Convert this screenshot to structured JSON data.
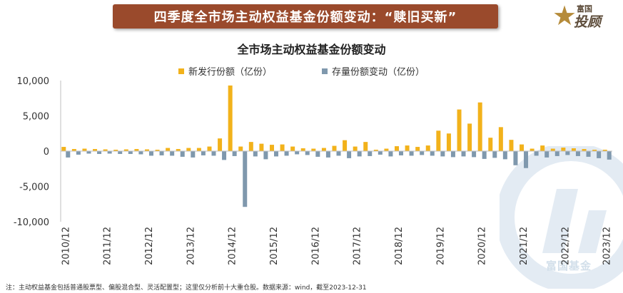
{
  "header": {
    "banner_title": "四季度全市场主动权益基金份额变动：“赎旧买新”",
    "logo_top": "富国",
    "logo_main": "投顾",
    "watermark_text": "富国基金"
  },
  "colors": {
    "banner": "#9a4a2c",
    "new_issue": "#f2b21b",
    "stock_change": "#7f98ad"
  },
  "footnote": "注：主动权益基金包括普通股票型、偏股混合型、灵活配置型；这里仅分析前十大重仓股。数据来源：wind，截至2023-12-31",
  "chart_data": {
    "type": "bar",
    "title": "全市场主动权益基金份额变动",
    "xlabel": "",
    "ylabel": "",
    "ylim": [
      -10000,
      10000
    ],
    "yticks": [
      "-10,000",
      "-5,000",
      "0",
      "5,000",
      "10,000"
    ],
    "legend_position": "top",
    "grid": false,
    "x_tick_labels": [
      "2010/12",
      "2011/12",
      "2012/12",
      "2013/12",
      "2014/12",
      "2015/12",
      "2016/12",
      "2017/12",
      "2018/12",
      "2019/12",
      "2020/12",
      "2021/12",
      "2022/12",
      "2023/12"
    ],
    "categories": [
      "2010Q4",
      "2011Q1",
      "2011Q2",
      "2011Q3",
      "2011Q4",
      "2012Q1",
      "2012Q2",
      "2012Q3",
      "2012Q4",
      "2013Q1",
      "2013Q2",
      "2013Q3",
      "2013Q4",
      "2014Q1",
      "2014Q2",
      "2014Q3",
      "2014Q4",
      "2015Q1",
      "2015Q2",
      "2015Q3",
      "2015Q4",
      "2016Q1",
      "2016Q2",
      "2016Q3",
      "2016Q4",
      "2017Q1",
      "2017Q2",
      "2017Q3",
      "2017Q4",
      "2018Q1",
      "2018Q2",
      "2018Q3",
      "2018Q4",
      "2019Q1",
      "2019Q2",
      "2019Q3",
      "2019Q4",
      "2020Q1",
      "2020Q2",
      "2020Q3",
      "2020Q4",
      "2021Q1",
      "2021Q2",
      "2021Q3",
      "2021Q4",
      "2022Q1",
      "2022Q2",
      "2022Q3",
      "2022Q4",
      "2023Q1",
      "2023Q2",
      "2023Q3",
      "2023Q4"
    ],
    "series": [
      {
        "name": "新发行份额（亿份）",
        "values": [
          600,
          300,
          350,
          300,
          250,
          200,
          250,
          300,
          250,
          200,
          450,
          300,
          450,
          450,
          650,
          1800,
          9300,
          650,
          1300,
          1050,
          900,
          950,
          650,
          400,
          350,
          450,
          750,
          1550,
          650,
          1300,
          200,
          350,
          700,
          800,
          600,
          800,
          2900,
          2500,
          5900,
          3900,
          6900,
          1900,
          3400,
          1600,
          950,
          350,
          800,
          350,
          500,
          400,
          300,
          200,
          200
        ]
      },
      {
        "name": "存量份额变动（亿份）",
        "values": [
          -900,
          -500,
          -350,
          -400,
          -350,
          -400,
          -400,
          -450,
          -650,
          -600,
          -650,
          -800,
          -900,
          -600,
          -650,
          -1250,
          -700,
          -7900,
          -750,
          -1150,
          -750,
          -650,
          -450,
          -550,
          -800,
          -900,
          -650,
          -1000,
          -750,
          -700,
          -500,
          -750,
          -600,
          -650,
          -550,
          -650,
          -750,
          -850,
          -750,
          -850,
          -1100,
          -950,
          -1150,
          -2000,
          -2400,
          -650,
          -900,
          -700,
          -550,
          -700,
          -800,
          -1000,
          -1200
        ]
      }
    ]
  }
}
